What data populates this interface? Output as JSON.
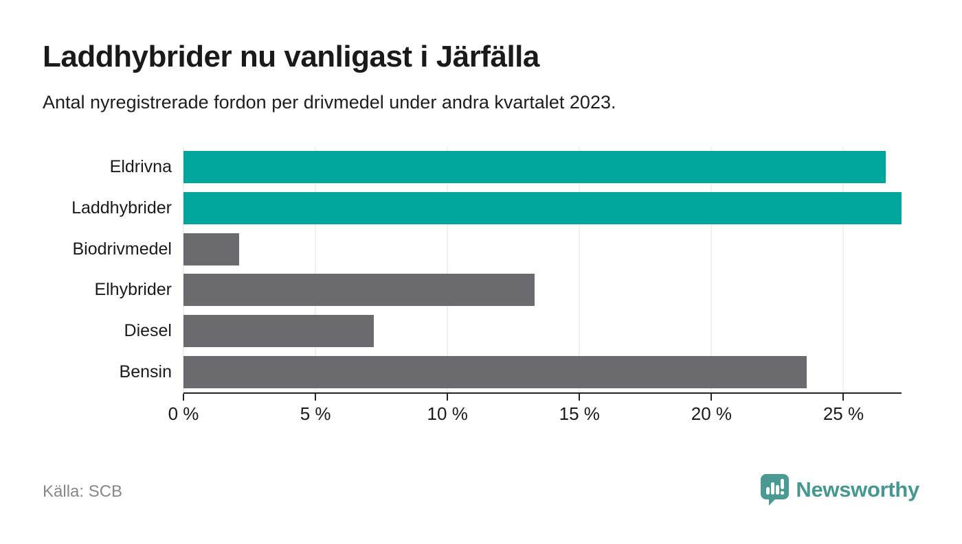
{
  "header": {
    "title": "Laddhybrider nu vanligast i Järfälla",
    "subtitle": "Antal nyregistrerade fordon per drivmedel under andra kvartalet 2023."
  },
  "footer": {
    "source": "Källa: SCB",
    "brand": "Newsworthy"
  },
  "colors": {
    "highlight": "#00a59b",
    "default": "#6a6a6f",
    "gridline": "#e2e2e2",
    "axis": "#222222",
    "brand": "#45978f"
  },
  "chart_data": {
    "type": "bar",
    "orientation": "horizontal",
    "title": "Laddhybrider nu vanligast i Järfälla",
    "subtitle": "Antal nyregistrerade fordon per drivmedel under andra kvartalet 2023.",
    "categories": [
      "Eldrivna",
      "Laddhybrider",
      "Biodrivmedel",
      "Elhybrider",
      "Diesel",
      "Bensin"
    ],
    "values": [
      26.6,
      27.2,
      2.1,
      13.3,
      7.2,
      23.6
    ],
    "unit": "%",
    "bar_color_keys": [
      "highlight",
      "highlight",
      "default",
      "default",
      "default",
      "default"
    ],
    "xlim": [
      0,
      27.2
    ],
    "x_ticks": [
      0,
      5,
      10,
      15,
      20,
      25
    ],
    "x_tick_labels": [
      "0 %",
      "5 %",
      "10 %",
      "15 %",
      "20 %",
      "25 %"
    ],
    "grid": "vertical",
    "legend": "none",
    "source": "Källa: SCB"
  }
}
